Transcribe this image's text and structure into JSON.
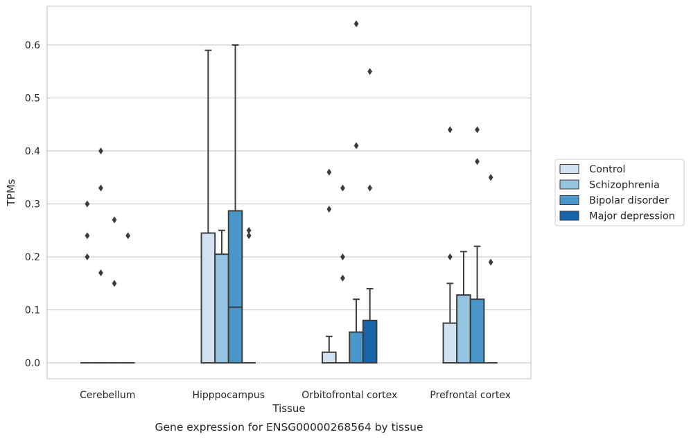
{
  "chart_data": {
    "type": "box",
    "xlabel": "Tissue",
    "ylabel": "TPMs",
    "caption": "Gene expression for ENSG00000268564 by tissue",
    "ylim": [
      -0.032,
      0.675
    ],
    "yticks": [
      "0.0",
      "0.1",
      "0.2",
      "0.3",
      "0.4",
      "0.5",
      "0.6"
    ],
    "grid": true,
    "legend_position": "right",
    "categories": [
      "Cerebellum",
      "Hipppocampus",
      "Orbitofrontal cortex",
      "Prefrontal cortex"
    ],
    "series": [
      {
        "name": "Control",
        "color": "#d0e1f2",
        "boxes": [
          {
            "q1": 0,
            "median": 0,
            "q3": 0,
            "low": 0,
            "high": 0,
            "outliers": [
              0.3,
              0.24,
              0.2
            ]
          },
          {
            "q1": 0,
            "median": 0,
            "q3": 0.245,
            "low": 0,
            "high": 0.59,
            "outliers": []
          },
          {
            "q1": 0,
            "median": 0,
            "q3": 0.02,
            "low": 0,
            "high": 0.05,
            "outliers": [
              0.36,
              0.29
            ]
          },
          {
            "q1": 0,
            "median": 0,
            "q3": 0.075,
            "low": 0,
            "high": 0.15,
            "outliers": [
              0.44,
              0.2
            ]
          }
        ]
      },
      {
        "name": "Schizophrenia",
        "color": "#94c4df",
        "boxes": [
          {
            "q1": 0,
            "median": 0,
            "q3": 0,
            "low": 0,
            "high": 0,
            "outliers": [
              0.4,
              0.33,
              0.17
            ]
          },
          {
            "q1": 0,
            "median": 0,
            "q3": 0.205,
            "low": 0,
            "high": 0.25,
            "outliers": []
          },
          {
            "q1": 0,
            "median": 0,
            "q3": 0,
            "low": 0,
            "high": 0,
            "outliers": [
              0.33,
              0.2,
              0.16
            ]
          },
          {
            "q1": 0,
            "median": 0,
            "q3": 0.128,
            "low": 0,
            "high": 0.21,
            "outliers": []
          }
        ]
      },
      {
        "name": "Bipolar disorder",
        "color": "#4a98c9",
        "boxes": [
          {
            "q1": 0,
            "median": 0,
            "q3": 0,
            "low": 0,
            "high": 0,
            "outliers": [
              0.27,
              0.15
            ]
          },
          {
            "q1": 0,
            "median": 0.105,
            "q3": 0.287,
            "low": 0,
            "high": 0.6,
            "outliers": []
          },
          {
            "q1": 0,
            "median": 0,
            "q3": 0.058,
            "low": 0,
            "high": 0.12,
            "outliers": [
              0.64,
              0.41
            ]
          },
          {
            "q1": 0,
            "median": 0,
            "q3": 0.12,
            "low": 0,
            "high": 0.22,
            "outliers": [
              0.44,
              0.38
            ]
          }
        ]
      },
      {
        "name": "Major depression",
        "color": "#1764ab",
        "boxes": [
          {
            "q1": 0,
            "median": 0,
            "q3": 0,
            "low": 0,
            "high": 0,
            "outliers": [
              0.24
            ]
          },
          {
            "q1": 0,
            "median": 0,
            "q3": 0,
            "low": 0,
            "high": 0,
            "outliers": [
              0.25,
              0.24
            ]
          },
          {
            "q1": 0,
            "median": 0,
            "q3": 0.08,
            "low": 0,
            "high": 0.14,
            "outliers": [
              0.55,
              0.33
            ]
          },
          {
            "q1": 0,
            "median": 0,
            "q3": 0,
            "low": 0,
            "high": 0,
            "outliers": [
              0.35,
              0.19
            ]
          }
        ]
      }
    ]
  }
}
